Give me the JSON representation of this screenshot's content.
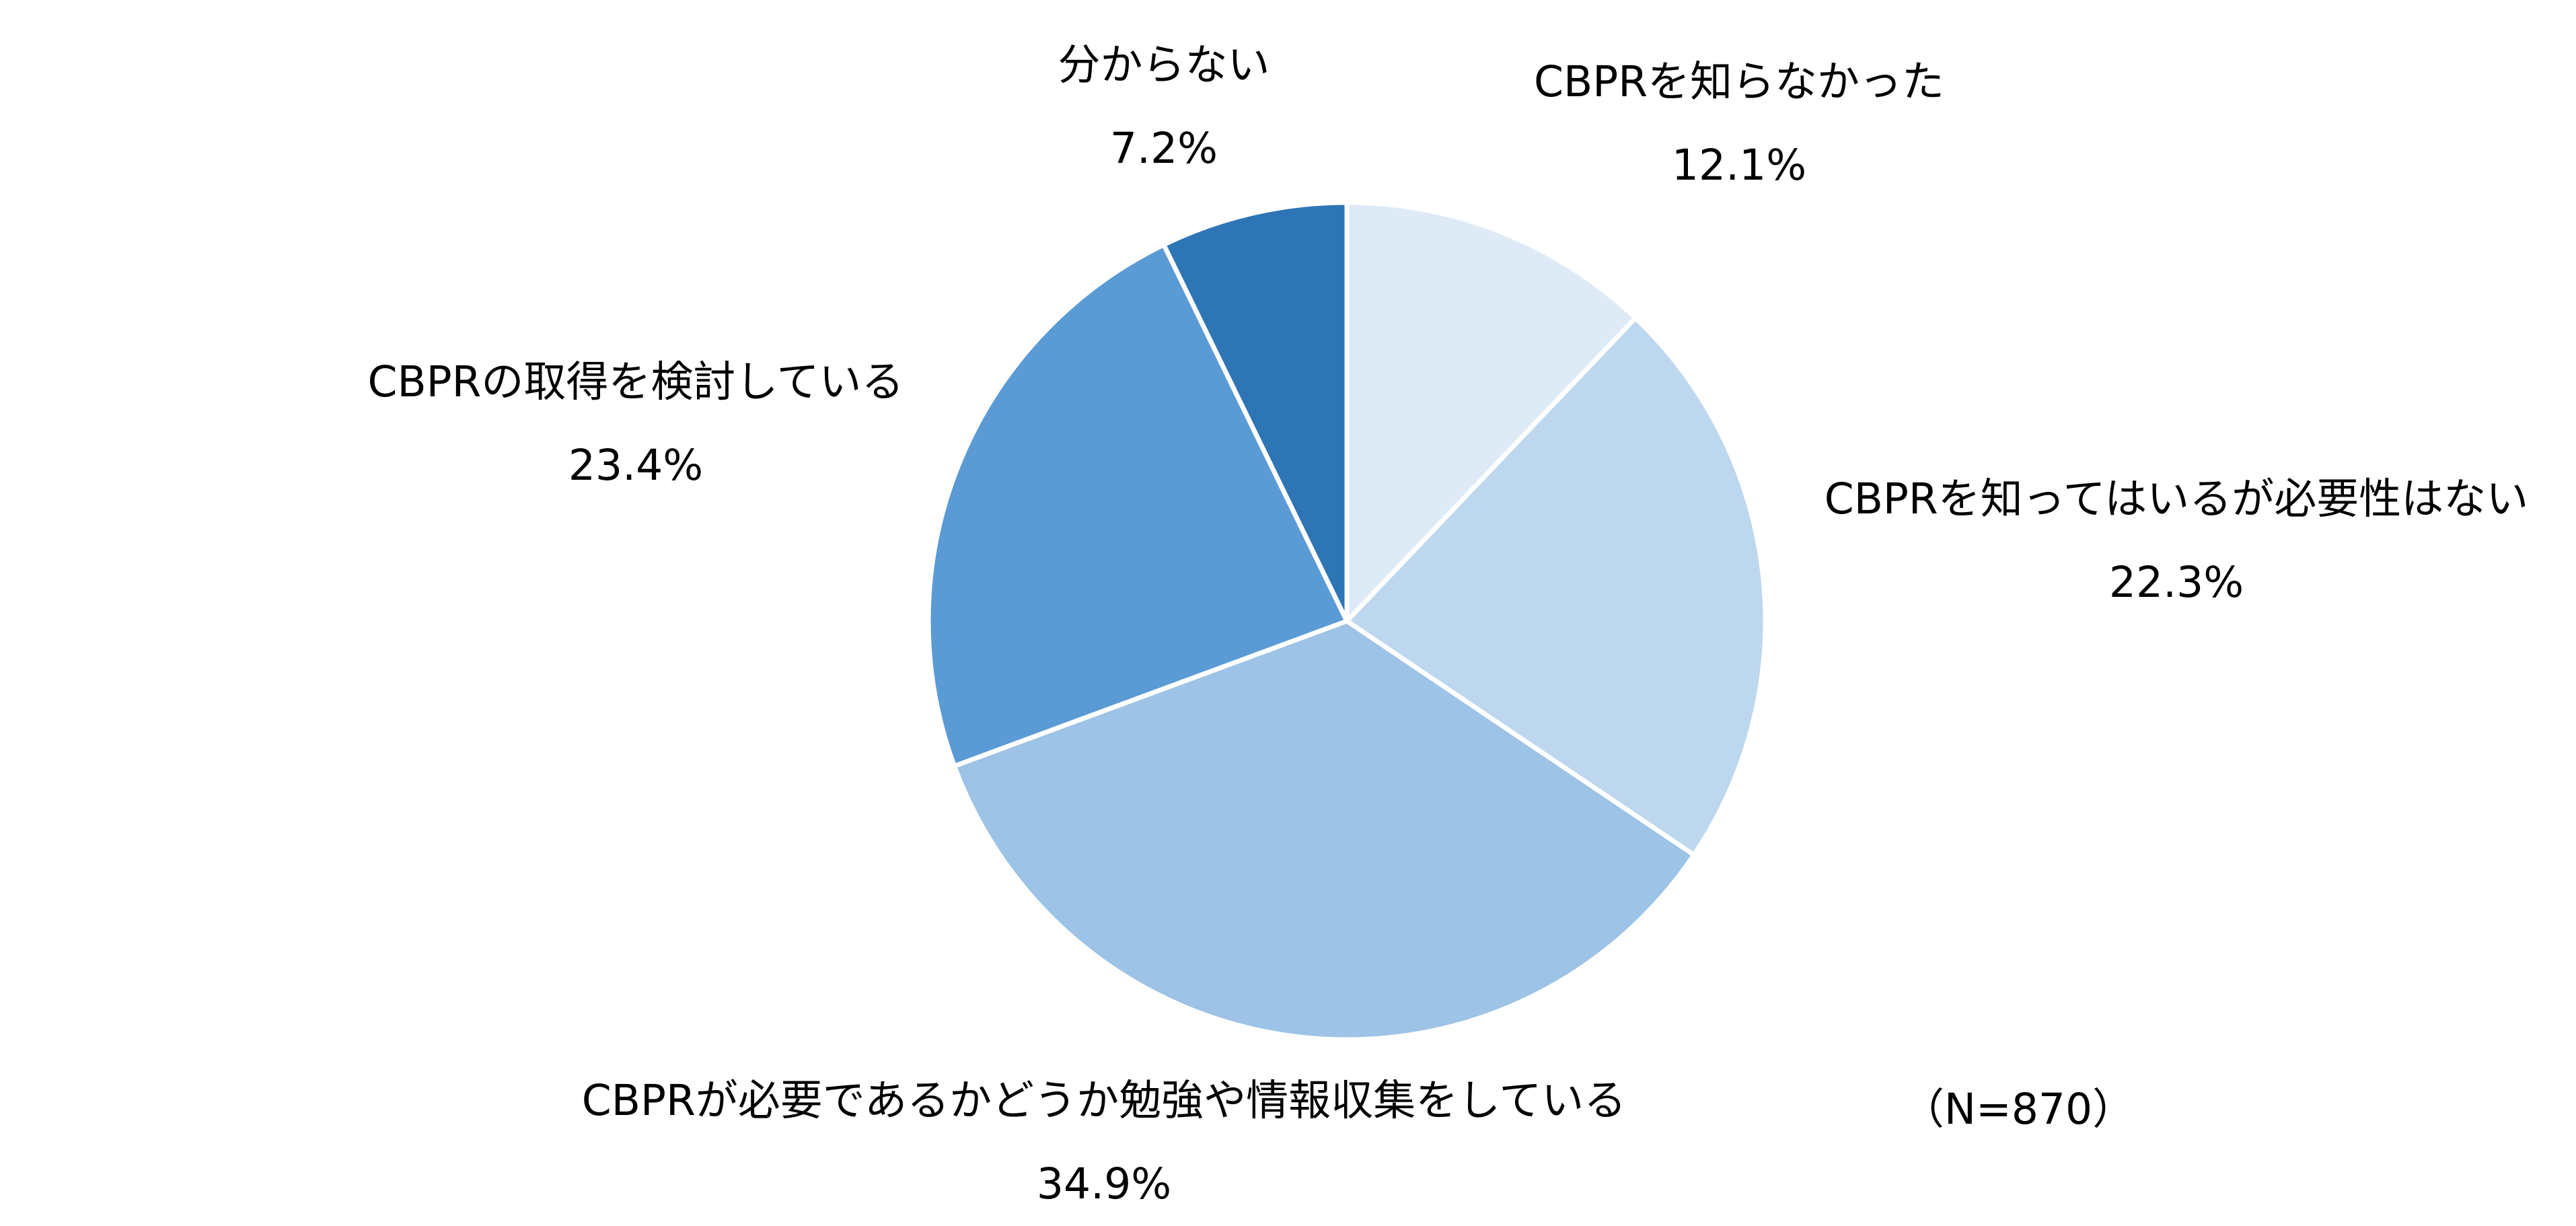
{
  "chart_data": {
    "type": "pie",
    "start_angle_deg": 0,
    "direction": "clockwise",
    "slices": [
      {
        "label": "CBPRを知らなかった",
        "value": 12.1,
        "display": "12.1%",
        "color": "#DEEBF7"
      },
      {
        "label": "CBPRを知ってはいるが必要性はない",
        "value": 22.3,
        "display": "22.3%",
        "color": "#BDD7EE"
      },
      {
        "label": "CBPRが必要であるかどうか勉強や情報収集をしている",
        "value": 34.9,
        "display": "34.9%",
        "color": "#9DC3E6"
      },
      {
        "label": "CBPRの取得を検討している",
        "value": 23.4,
        "display": "23.4%",
        "color": "#5B9BD5"
      },
      {
        "label": "分からない",
        "value": 7.2,
        "display": "7.2%",
        "color": "#2E75B6"
      }
    ],
    "note": "（N=870）",
    "slice_border_color": "#FFFFFF"
  }
}
